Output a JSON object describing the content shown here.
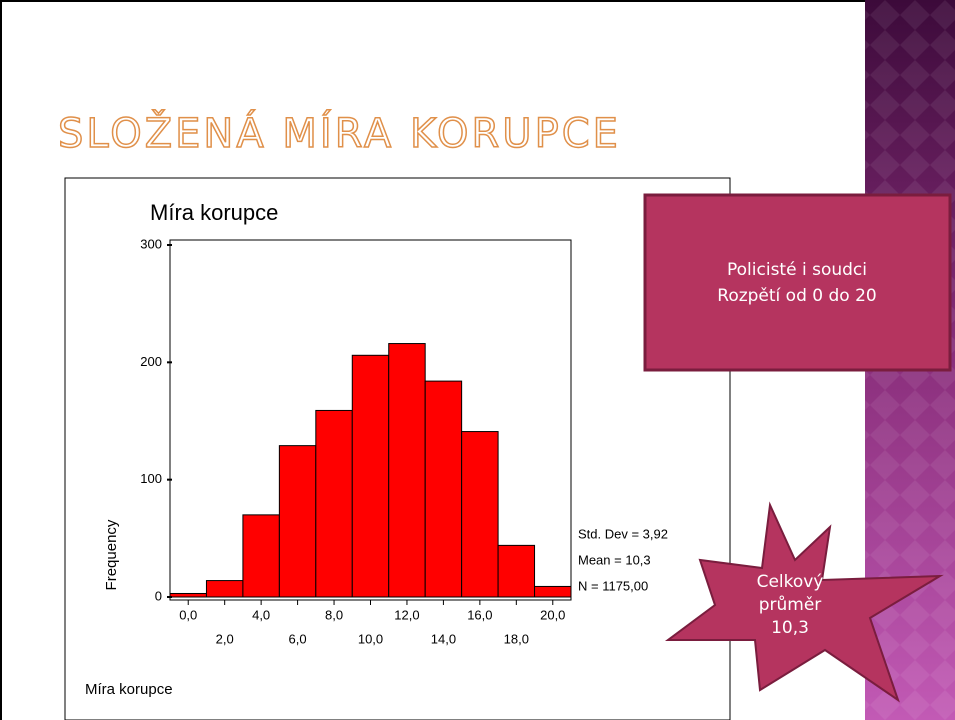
{
  "slide_title": "SLOŽENÁ MÍRA KORUPCE",
  "callout": {
    "lines": [
      "Policisté i soudci",
      "Rozpětí od 0 do 20"
    ]
  },
  "starburst": {
    "lines": [
      "Celkový",
      "průměr",
      "10,3"
    ]
  },
  "chart_data": {
    "type": "histogram",
    "title": "Míra korupce",
    "x_label": "Míra korupce",
    "y_label": "Frequency",
    "bins": [
      -1,
      1,
      3,
      5,
      7,
      9,
      11,
      13,
      15,
      17,
      19,
      21
    ],
    "values": [
      3,
      14,
      70,
      129,
      159,
      206,
      216,
      184,
      141,
      44,
      9
    ],
    "color": "#ff0000",
    "xlim": [
      -1,
      21
    ],
    "xticks": [
      {
        "value": 0,
        "label": "0,0"
      },
      {
        "value": 2,
        "label": "2,0"
      },
      {
        "value": 4,
        "label": "4,0"
      },
      {
        "value": 6,
        "label": "6,0"
      },
      {
        "value": 8,
        "label": "8,0"
      },
      {
        "value": 10,
        "label": "10,0"
      },
      {
        "value": 12,
        "label": "12,0"
      },
      {
        "value": 14,
        "label": "14,0"
      },
      {
        "value": 16,
        "label": "16,0"
      },
      {
        "value": 18,
        "label": "18,0"
      },
      {
        "value": 20,
        "label": "20,0"
      }
    ],
    "ylim": [
      0,
      300
    ],
    "yticks": [
      0,
      100,
      200,
      300
    ],
    "annotations": [
      "Std. Dev = 3,92",
      "Mean = 10,3",
      "N = 1175,00"
    ]
  }
}
